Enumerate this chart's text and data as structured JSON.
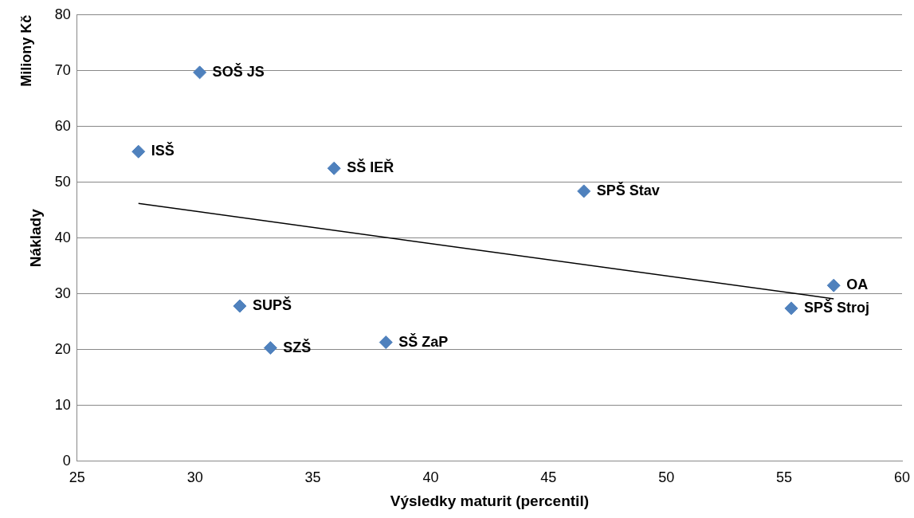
{
  "chart_data": {
    "type": "scatter",
    "xlabel": "Výsledky maturit (percentil)",
    "ylabel": "Náklady",
    "xlim": [
      25,
      60
    ],
    "xticks": [
      25,
      30,
      35,
      40,
      45,
      50,
      55,
      60
    ],
    "ylim": [
      0,
      80
    ],
    "yticks": [
      0,
      10,
      20,
      30,
      40,
      50,
      60,
      70,
      80
    ],
    "grid": "y",
    "legend": false,
    "marker": "diamond",
    "series": [
      {
        "type": "scatter",
        "color": "#4f81bd",
        "x": [
          30.2,
          27.6,
          35.9,
          46.5,
          57.1,
          55.3,
          31.9,
          33.2,
          38.1
        ],
        "values": [
          69.7,
          55.5,
          52.5,
          48.4,
          31.5,
          27.4,
          27.8,
          20.3,
          21.3
        ]
      },
      {
        "type": "line",
        "marker": "none",
        "color": "#000000",
        "x": [
          27.6,
          57.1
        ],
        "values": [
          46.2,
          29.1
        ]
      }
    ],
    "annotations": [
      "Miliony Kč",
      {
        "text": "SOŠ JS",
        "x": 30.2,
        "y": 69.7
      },
      {
        "text": "ISŠ",
        "x": 27.6,
        "y": 55.5
      },
      {
        "text": "SŠ IEŘ",
        "x": 35.9,
        "y": 52.5
      },
      {
        "text": "SPŠ Stav",
        "x": 46.5,
        "y": 48.4
      },
      {
        "text": "OA",
        "x": 57.1,
        "y": 31.5
      },
      {
        "text": "SPŠ Stroj",
        "x": 55.3,
        "y": 27.4
      },
      {
        "text": "SUPŠ",
        "x": 31.9,
        "y": 27.8
      },
      {
        "text": "SZŠ",
        "x": 33.2,
        "y": 20.3
      },
      {
        "text": "SŠ ZaP",
        "x": 38.1,
        "y": 21.3
      }
    ]
  }
}
